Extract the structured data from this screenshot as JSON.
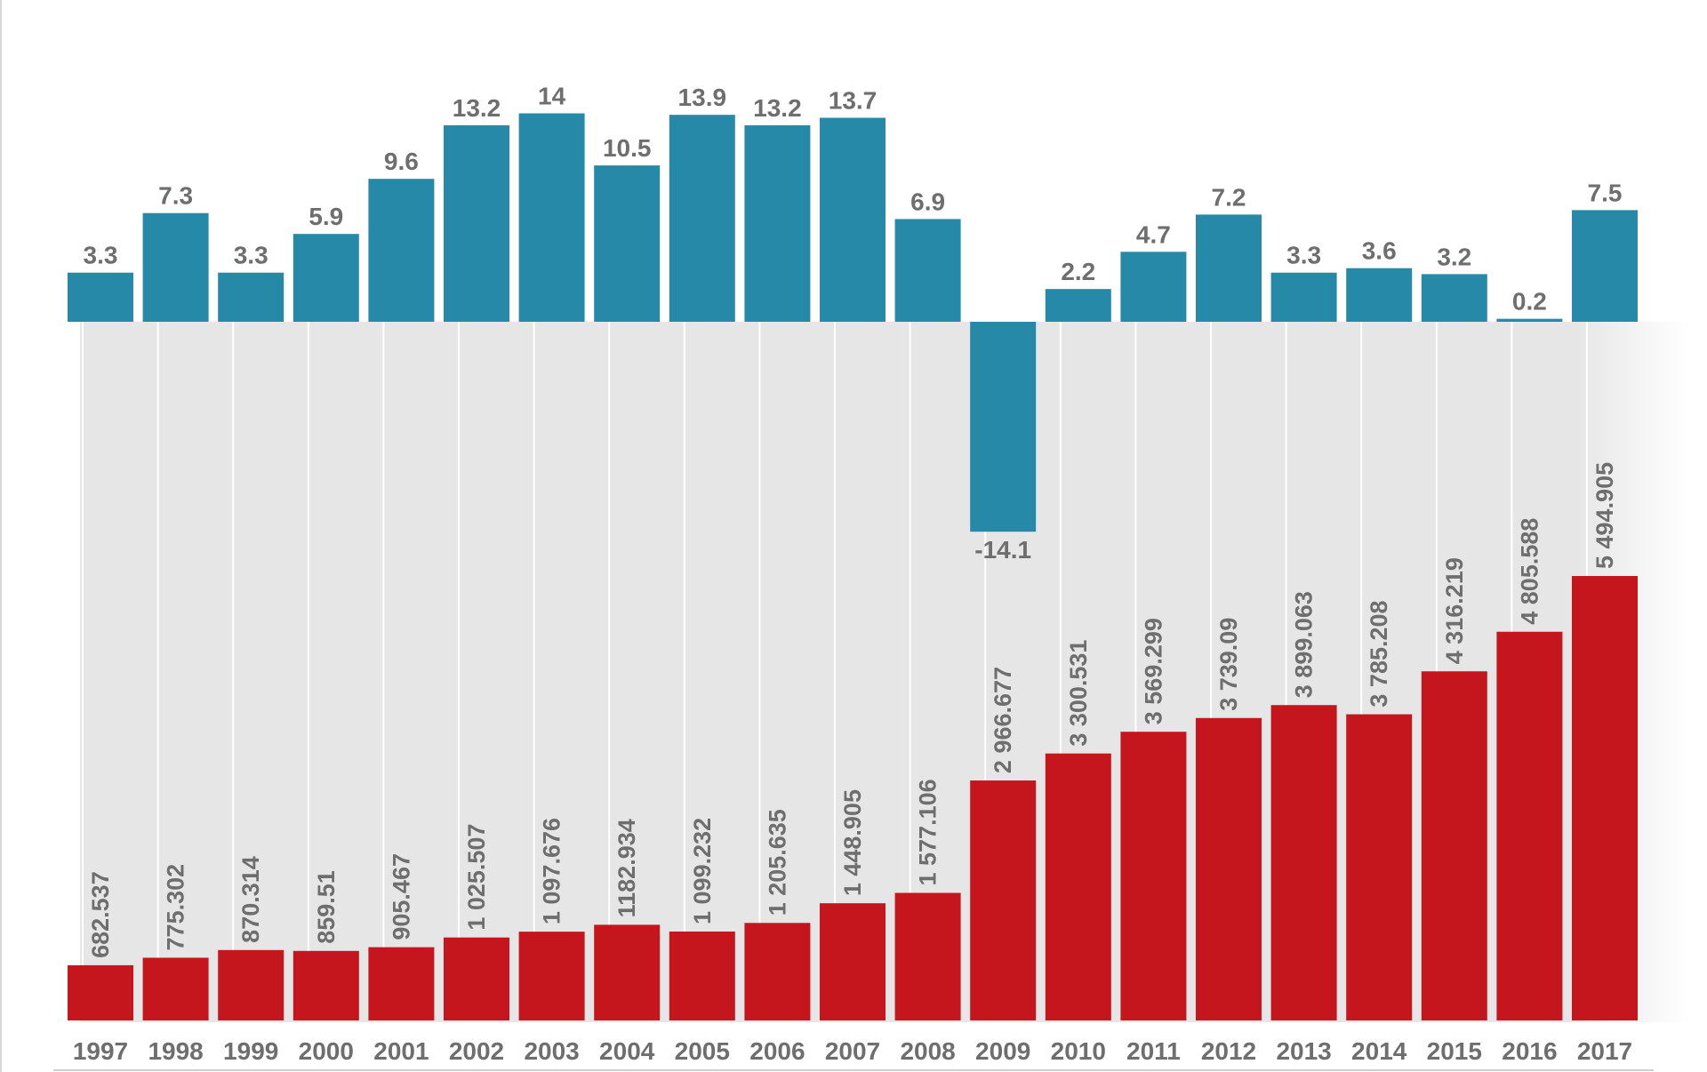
{
  "colors": {
    "growth_bar": "#2789a8",
    "level_bar": "#c4161c",
    "label_text": "#6e6e6e",
    "background_panel": "#e6e6e6",
    "guide_line": "#ffffff"
  },
  "chart_data": [
    {
      "type": "bar",
      "categories": [
        "1997",
        "1998",
        "1999",
        "2000",
        "2001",
        "2002",
        "2003",
        "2004",
        "2005",
        "2006",
        "2007",
        "2008",
        "2009",
        "2010",
        "2011",
        "2012",
        "2013",
        "2014",
        "2015",
        "2016",
        "2017"
      ],
      "values": [
        3.3,
        7.3,
        3.3,
        5.9,
        9.6,
        13.2,
        14,
        10.5,
        13.9,
        13.2,
        13.7,
        6.9,
        -14.1,
        2.2,
        4.7,
        7.2,
        3.3,
        3.6,
        3.2,
        0.2,
        7.5
      ],
      "value_labels": [
        "3.3",
        "7.3",
        "3.3",
        "5.9",
        "9.6",
        "13.2",
        "14",
        "10.5",
        "13.9",
        "13.2",
        "13.7",
        "6.9",
        "-14.1",
        "2.2",
        "4.7",
        "7.2",
        "3.3",
        "3.6",
        "3.2",
        "0.2",
        "7.5"
      ],
      "ylim": [
        -14.1,
        14
      ],
      "title": "",
      "xlabel": "",
      "ylabel": ""
    },
    {
      "type": "bar",
      "categories": [
        "1997",
        "1998",
        "1999",
        "2000",
        "2001",
        "2002",
        "2003",
        "2004",
        "2005",
        "2006",
        "2007",
        "2008",
        "2009",
        "2010",
        "2011",
        "2012",
        "2013",
        "2014",
        "2015",
        "2016",
        "2017"
      ],
      "values": [
        682.537,
        775.302,
        870.314,
        859.51,
        905.467,
        1025.507,
        1097.676,
        1182.934,
        1099.232,
        1205.635,
        1448.905,
        1577.106,
        2966.677,
        3300.531,
        3569.299,
        3739.09,
        3899.063,
        3785.208,
        4316.219,
        4805.588,
        5494.905
      ],
      "value_labels": [
        "682.537",
        "775.302",
        "870.314",
        "859.51",
        "905.467",
        "1 025.507",
        "1 097.676",
        "1182.934",
        "1 099.232",
        "1 205.635",
        "1 448.905",
        "1 577.106",
        "2 966.677",
        "3 300.531",
        "3 569.299",
        "3 739.09",
        "3 899.063",
        "3 785.208",
        "4 316.219",
        "4 805.588",
        "5 494.905"
      ],
      "ylim": [
        0,
        5494.905
      ],
      "title": "",
      "xlabel": "",
      "ylabel": ""
    }
  ]
}
